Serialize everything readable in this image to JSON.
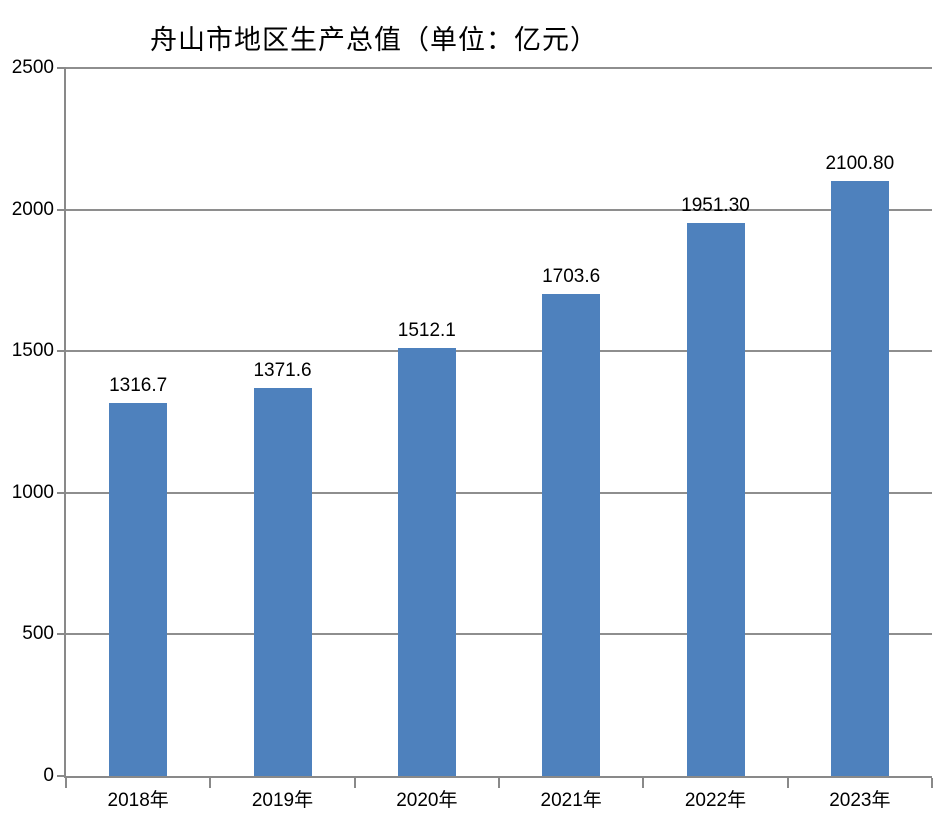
{
  "chart_data": {
    "type": "bar",
    "title": "舟山市地区生产总值（单位：亿元）",
    "categories": [
      "2018年",
      "2019年",
      "2020年",
      "2021年",
      "2022年",
      "2023年"
    ],
    "values": [
      1316.7,
      1371.6,
      1512.1,
      1703.6,
      1951.3,
      2100.8
    ],
    "value_labels": [
      "1316.7",
      "1371.6",
      "1512.1",
      "1703.6",
      "1951.30",
      "2100.80"
    ],
    "xlabel": "",
    "ylabel": "",
    "ylim": [
      0,
      2500
    ],
    "yticks": [
      0,
      500,
      1000,
      1500,
      2000,
      2500
    ],
    "grid": true,
    "legend_position": "none",
    "data_label_position": "outside-end",
    "colors": {
      "bar": "#4e81bd",
      "gridline": "#8e8e8e",
      "axis": "#898989",
      "text": "#000000",
      "background": "#ffffff"
    }
  }
}
